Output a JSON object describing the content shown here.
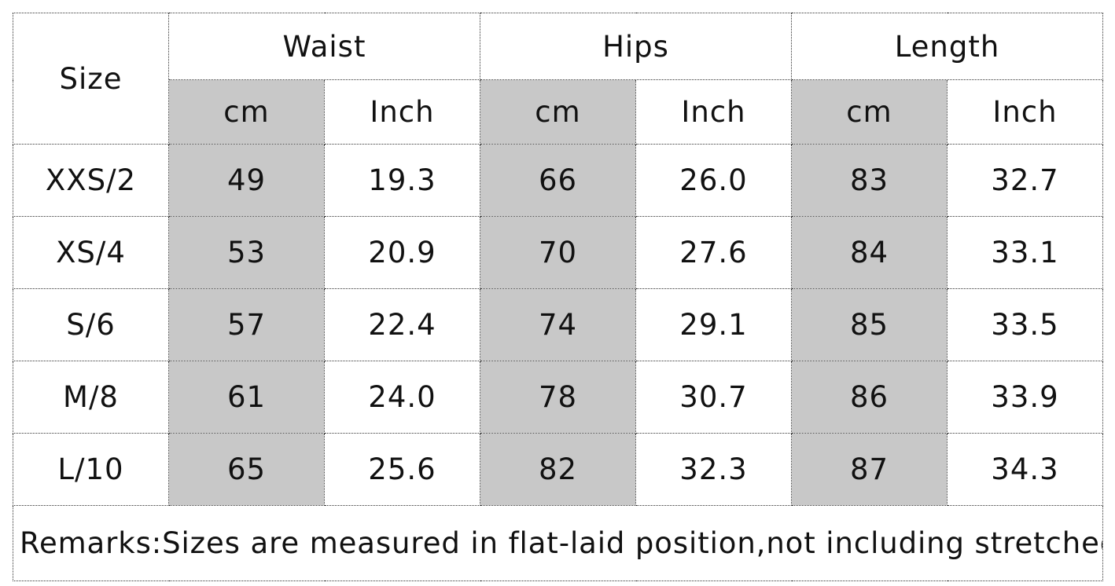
{
  "table": {
    "size_label": "Size",
    "groups": [
      "Waist",
      "Hips",
      "Length"
    ],
    "units": [
      "cm",
      "Inch",
      "cm",
      "Inch",
      "cm",
      "Inch"
    ],
    "rows": [
      {
        "size": "XXS/2",
        "values": [
          "49",
          "19.3",
          "66",
          "26.0",
          "83",
          "32.7"
        ]
      },
      {
        "size": "XS/4",
        "values": [
          "53",
          "20.9",
          "70",
          "27.6",
          "84",
          "33.1"
        ]
      },
      {
        "size": "S/6",
        "values": [
          "57",
          "22.4",
          "74",
          "29.1",
          "85",
          "33.5"
        ]
      },
      {
        "size": "M/8",
        "values": [
          "61",
          "24.0",
          "78",
          "30.7",
          "86",
          "33.9"
        ]
      },
      {
        "size": "L/10",
        "values": [
          "65",
          "25.6",
          "82",
          "32.3",
          "87",
          "34.3"
        ]
      }
    ],
    "remarks": "Remarks:Sizes are measured in flat-laid position,not including stretched",
    "shade_color": "#c8c8c8"
  }
}
